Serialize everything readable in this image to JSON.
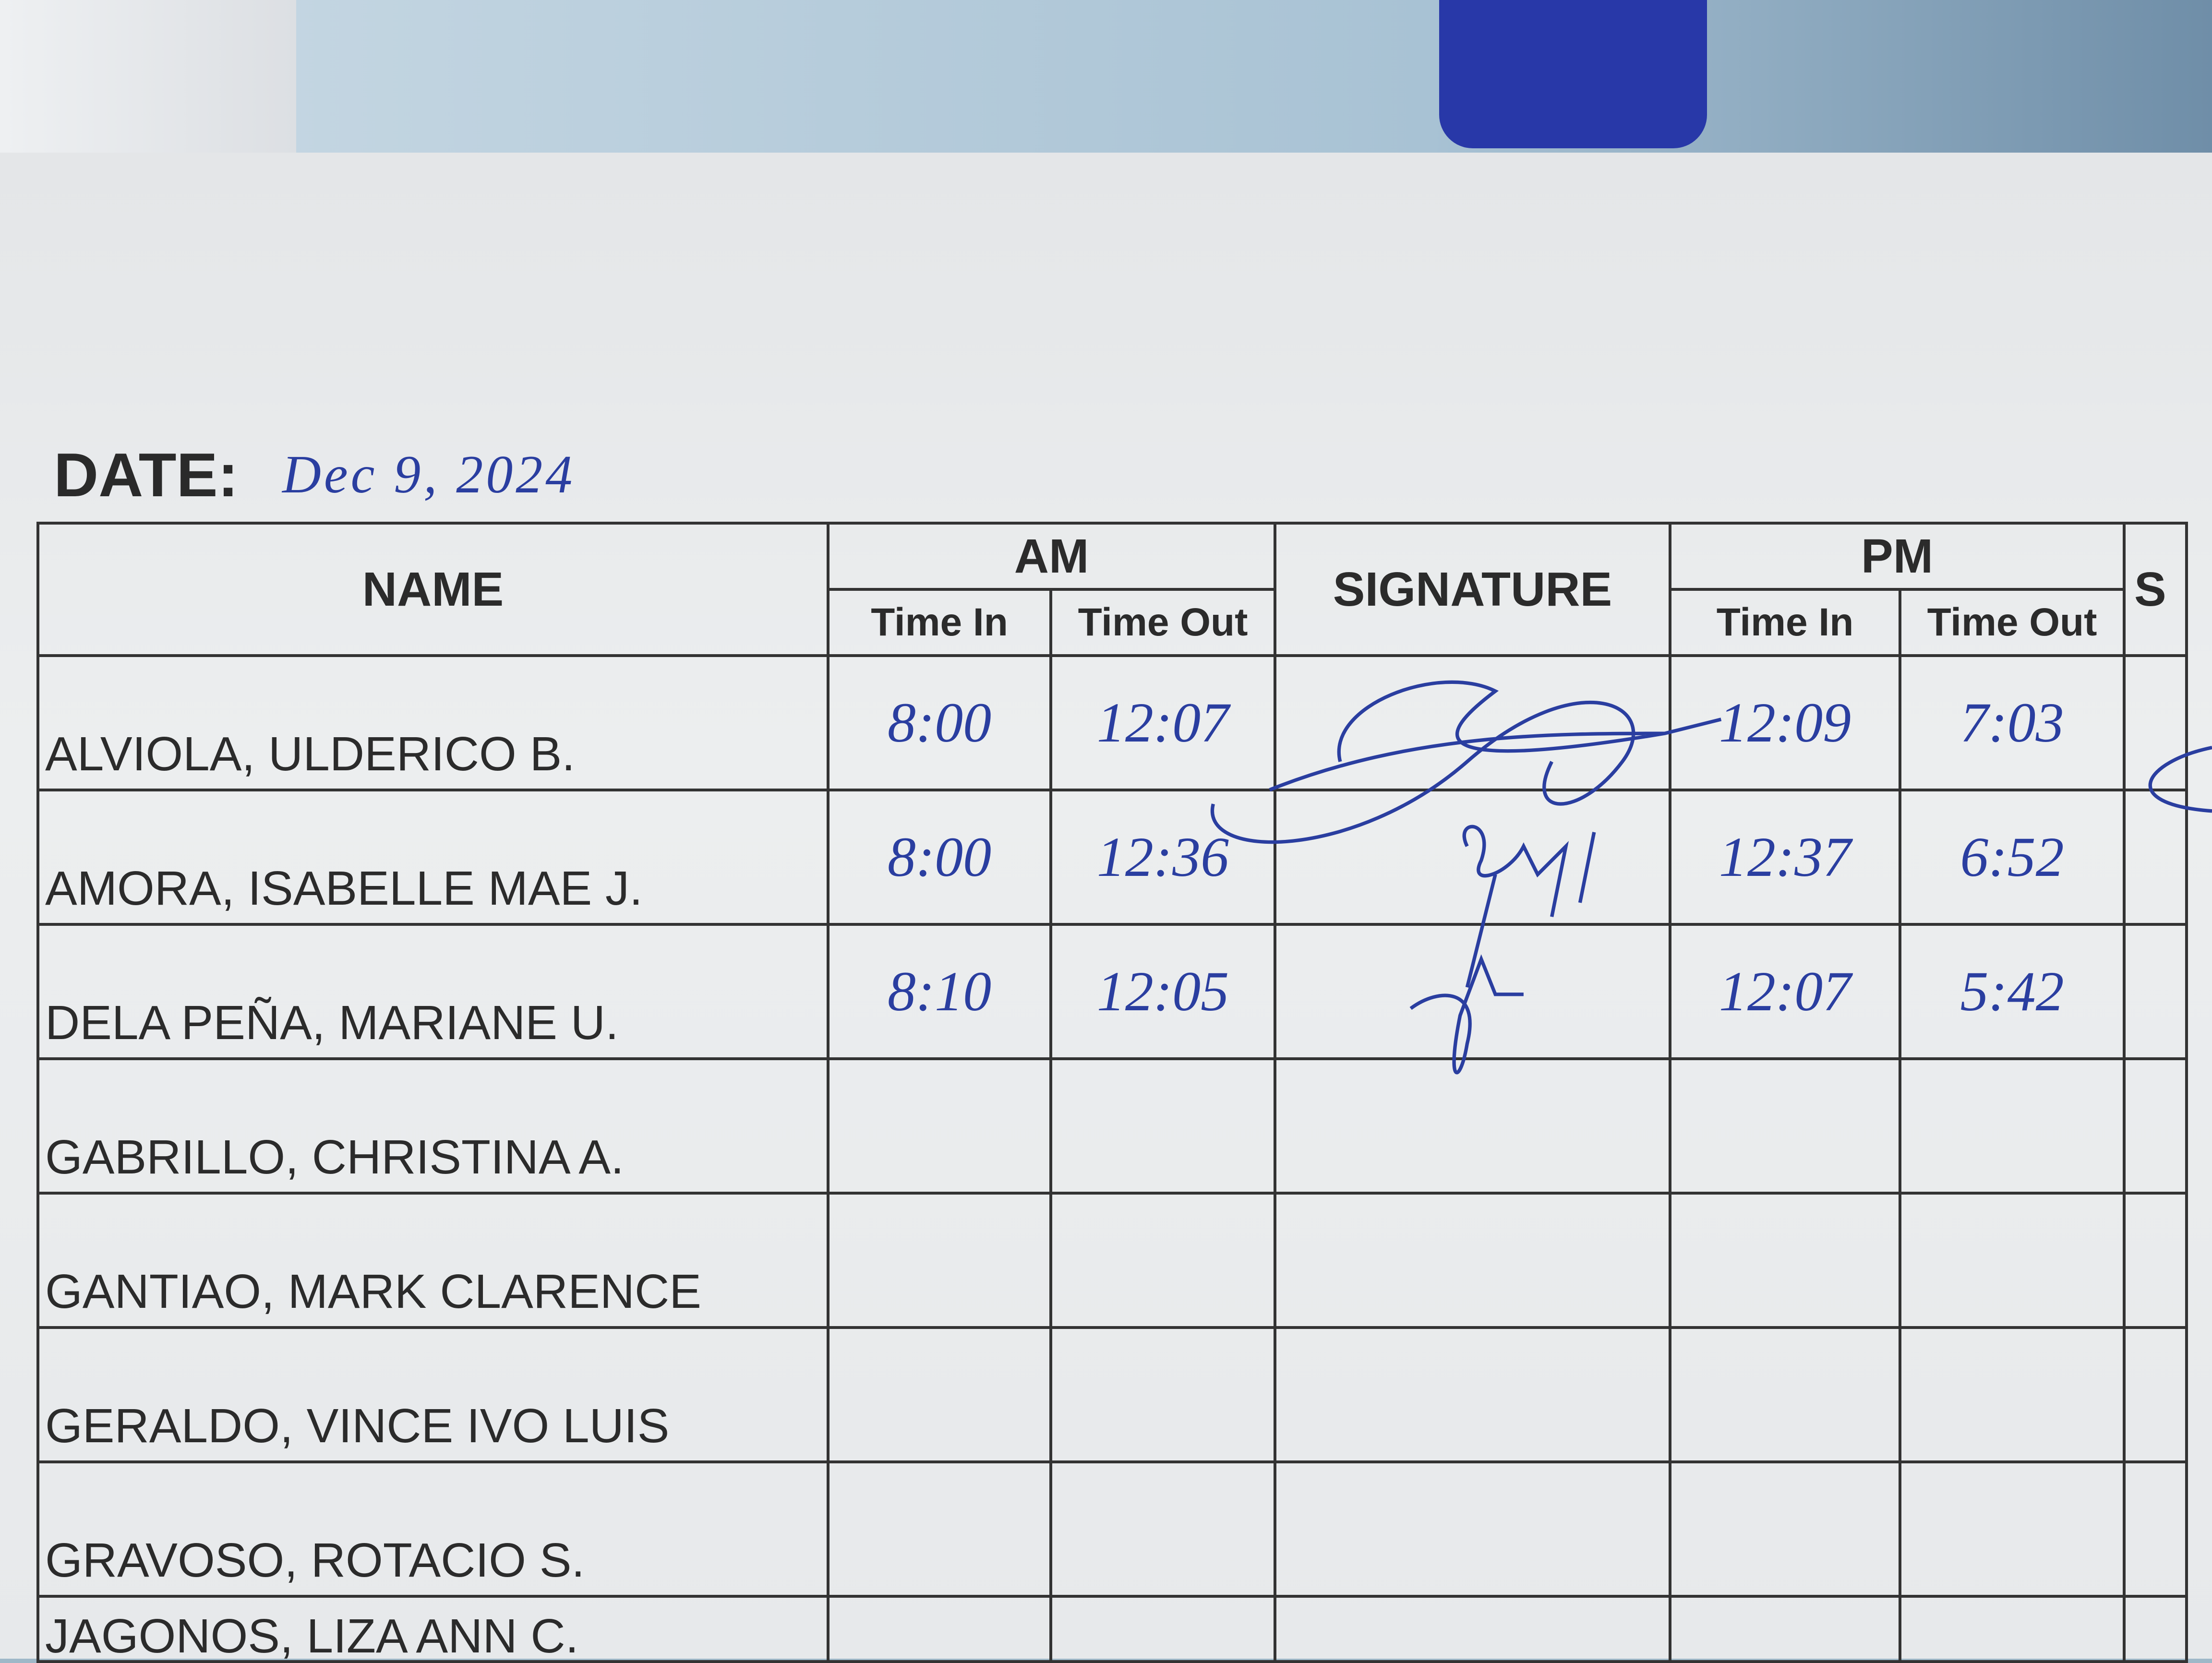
{
  "date": {
    "label": "DATE:",
    "value": "Dec 9, 2024"
  },
  "headers": {
    "name": "NAME",
    "am": "AM",
    "signature": "SIGNATURE",
    "pm": "PM",
    "next": "S",
    "time_in": "Time In",
    "time_out": "Time Out"
  },
  "rows": [
    {
      "name": "ALVIOLA, ULDERICO B.",
      "am_in": "8:00",
      "am_out": "12:07",
      "pm_in": "12:09",
      "pm_out": "7:03",
      "signed": true
    },
    {
      "name": "AMORA, ISABELLE MAE J.",
      "am_in": "8:00",
      "am_out": "12:36",
      "pm_in": "12:37",
      "pm_out": "6:52",
      "signed": true
    },
    {
      "name": "DELA PEÑA, MARIANE U.",
      "am_in": "8:10",
      "am_out": "12:05",
      "pm_in": "12:07",
      "pm_out": "5:42",
      "signed": true
    },
    {
      "name": "GABRILLO, CHRISTINA A.",
      "am_in": "",
      "am_out": "",
      "pm_in": "",
      "pm_out": "",
      "signed": false
    },
    {
      "name": "GANTIAO, MARK CLARENCE",
      "am_in": "",
      "am_out": "",
      "pm_in": "",
      "pm_out": "",
      "signed": false
    },
    {
      "name": "GERALDO, VINCE IVO LUIS",
      "am_in": "",
      "am_out": "",
      "pm_in": "",
      "pm_out": "",
      "signed": false
    },
    {
      "name": "GRAVOSO, ROTACIO S.",
      "am_in": "",
      "am_out": "",
      "pm_in": "",
      "pm_out": "",
      "signed": false
    },
    {
      "name": "JAGONOS, LIZA ANN C.",
      "am_in": "",
      "am_out": "",
      "pm_in": "",
      "pm_out": "",
      "signed": false
    }
  ],
  "colors": {
    "ink": "#2a3ea0",
    "print": "#2b2b2b",
    "paper": "#e8eaec"
  }
}
